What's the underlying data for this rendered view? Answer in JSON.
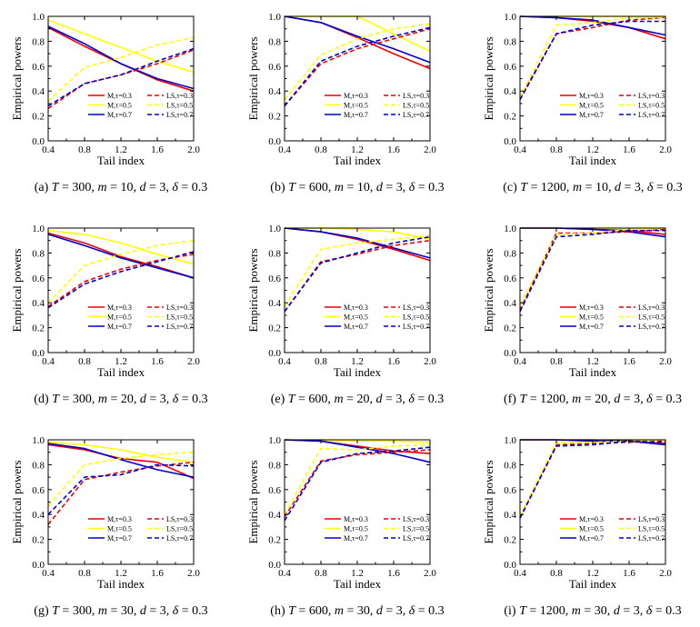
{
  "colors": {
    "red": "#ee0000",
    "yellow": "#ffff00",
    "blue": "#0000cc"
  },
  "legend": {
    "M": [
      "M,τ=0.3",
      "M,τ=0.5",
      "M,τ=0.7"
    ],
    "LS": [
      "LS,τ=0.3",
      "LS,τ=0.5",
      "LS,τ=0.7"
    ]
  },
  "chart_data": [
    {
      "type": "line",
      "panel": "a",
      "title_parts": [
        "(a) ",
        "T",
        " = 300, ",
        "m",
        " = 10, ",
        "d",
        " = 3, ",
        "δ",
        " = 0.3"
      ],
      "xlabel": "Tail index",
      "ylabel": "Empirical powers",
      "xlim": [
        0.4,
        2.0
      ],
      "ylim": [
        0.0,
        1.0
      ],
      "xticks": [
        "0.4",
        "0.8",
        "1.2",
        "1.6",
        "2.0"
      ],
      "yticks": [
        "0.0",
        "0.2",
        "0.4",
        "0.6",
        "0.8",
        "1.0"
      ],
      "x": [
        0.4,
        0.8,
        1.2,
        1.6,
        2.0
      ],
      "series": [
        {
          "name": "M,τ=0.3",
          "color": "red",
          "dash": false,
          "values": [
            0.91,
            0.76,
            0.62,
            0.49,
            0.4
          ]
        },
        {
          "name": "M,τ=0.5",
          "color": "yellow",
          "dash": false,
          "values": [
            0.97,
            0.86,
            0.75,
            0.64,
            0.55
          ]
        },
        {
          "name": "M,τ=0.7",
          "color": "blue",
          "dash": false,
          "values": [
            0.92,
            0.78,
            0.62,
            0.5,
            0.42
          ]
        },
        {
          "name": "LS,τ=0.3",
          "color": "red",
          "dash": true,
          "values": [
            0.26,
            0.46,
            0.53,
            0.62,
            0.73
          ]
        },
        {
          "name": "LS,τ=0.5",
          "color": "yellow",
          "dash": true,
          "values": [
            0.32,
            0.59,
            0.67,
            0.77,
            0.83
          ]
        },
        {
          "name": "LS,τ=0.7",
          "color": "blue",
          "dash": true,
          "values": [
            0.28,
            0.46,
            0.53,
            0.64,
            0.74
          ]
        }
      ]
    },
    {
      "type": "line",
      "panel": "b",
      "title_parts": [
        "(b) ",
        "T",
        " = 600, ",
        "m",
        " = 10, ",
        "d",
        " = 3, ",
        "δ",
        " = 0.3"
      ],
      "xlabel": "Tail index",
      "ylabel": "Empirical powers",
      "xlim": [
        0.4,
        2.0
      ],
      "ylim": [
        0.0,
        1.0
      ],
      "xticks": [
        "0.4",
        "0.8",
        "1.2",
        "1.6",
        "2.0"
      ],
      "yticks": [
        "0.0",
        "0.2",
        "0.4",
        "0.6",
        "0.8",
        "1.0"
      ],
      "x": [
        0.4,
        0.8,
        1.2,
        1.6,
        2.0
      ],
      "series": [
        {
          "name": "M,τ=0.3",
          "color": "red",
          "dash": false,
          "values": [
            1.0,
            0.95,
            0.83,
            0.7,
            0.58
          ]
        },
        {
          "name": "M,τ=0.5",
          "color": "yellow",
          "dash": false,
          "values": [
            1.0,
            1.0,
            1.0,
            0.86,
            0.72
          ]
        },
        {
          "name": "M,τ=0.7",
          "color": "blue",
          "dash": false,
          "values": [
            1.0,
            0.95,
            0.84,
            0.74,
            0.63
          ]
        },
        {
          "name": "LS,τ=0.3",
          "color": "red",
          "dash": true,
          "values": [
            0.28,
            0.62,
            0.74,
            0.82,
            0.9
          ]
        },
        {
          "name": "LS,τ=0.5",
          "color": "yellow",
          "dash": true,
          "values": [
            0.33,
            0.69,
            0.82,
            0.9,
            0.94
          ]
        },
        {
          "name": "LS,τ=0.7",
          "color": "blue",
          "dash": true,
          "values": [
            0.28,
            0.64,
            0.76,
            0.84,
            0.91
          ]
        }
      ]
    },
    {
      "type": "line",
      "panel": "c",
      "title_parts": [
        "(c) ",
        "T",
        " = 1200, ",
        "m",
        " = 10, ",
        "d",
        " = 3, ",
        "δ",
        " = 0.3"
      ],
      "xlabel": "Tail index",
      "ylabel": "Empirical powers",
      "xlim": [
        0.4,
        2.0
      ],
      "ylim": [
        0.0,
        1.0
      ],
      "xticks": [
        "0.4",
        "0.8",
        "1.2",
        "1.6",
        "2.0"
      ],
      "yticks": [
        "0.0",
        "0.2",
        "0.4",
        "0.6",
        "0.8",
        "1.0"
      ],
      "x": [
        0.4,
        0.8,
        1.2,
        1.6,
        2.0
      ],
      "series": [
        {
          "name": "M,τ=0.3",
          "color": "red",
          "dash": false,
          "values": [
            1.0,
            0.99,
            0.96,
            0.91,
            0.82
          ]
        },
        {
          "name": "M,τ=0.5",
          "color": "yellow",
          "dash": false,
          "values": [
            1.0,
            1.0,
            1.0,
            1.0,
            0.99
          ]
        },
        {
          "name": "M,τ=0.7",
          "color": "blue",
          "dash": false,
          "values": [
            1.0,
            0.99,
            0.97,
            0.91,
            0.85
          ]
        },
        {
          "name": "LS,τ=0.3",
          "color": "red",
          "dash": true,
          "values": [
            0.34,
            0.86,
            0.91,
            0.97,
            0.99
          ]
        },
        {
          "name": "LS,τ=0.5",
          "color": "yellow",
          "dash": true,
          "values": [
            0.35,
            0.93,
            0.95,
            0.99,
            0.99
          ]
        },
        {
          "name": "LS,τ=0.7",
          "color": "blue",
          "dash": true,
          "values": [
            0.33,
            0.86,
            0.93,
            0.96,
            0.96
          ]
        }
      ]
    },
    {
      "type": "line",
      "panel": "d",
      "title_parts": [
        "(d) ",
        "T",
        " = 300, ",
        "m",
        " = 20, ",
        "d",
        " = 3, ",
        "δ",
        " = 0.3"
      ],
      "xlabel": "Tail index",
      "ylabel": "Empirical powers",
      "xlim": [
        0.4,
        2.0
      ],
      "ylim": [
        0.0,
        1.0
      ],
      "xticks": [
        "0.4",
        "0.8",
        "1.2",
        "1.6",
        "2.0"
      ],
      "yticks": [
        "0.0",
        "0.2",
        "0.4",
        "0.6",
        "0.8",
        "1.0"
      ],
      "x": [
        0.4,
        0.8,
        1.2,
        1.6,
        2.0
      ],
      "series": [
        {
          "name": "M,τ=0.3",
          "color": "red",
          "dash": false,
          "values": [
            0.96,
            0.88,
            0.77,
            0.69,
            0.6
          ]
        },
        {
          "name": "M,τ=0.5",
          "color": "yellow",
          "dash": false,
          "values": [
            0.98,
            0.95,
            0.88,
            0.79,
            0.71
          ]
        },
        {
          "name": "M,τ=0.7",
          "color": "blue",
          "dash": false,
          "values": [
            0.95,
            0.86,
            0.76,
            0.68,
            0.6
          ]
        },
        {
          "name": "LS,τ=0.3",
          "color": "red",
          "dash": true,
          "values": [
            0.37,
            0.57,
            0.67,
            0.74,
            0.79
          ]
        },
        {
          "name": "LS,τ=0.5",
          "color": "yellow",
          "dash": true,
          "values": [
            0.4,
            0.7,
            0.79,
            0.86,
            0.9
          ]
        },
        {
          "name": "LS,τ=0.7",
          "color": "blue",
          "dash": true,
          "values": [
            0.36,
            0.55,
            0.65,
            0.73,
            0.81
          ]
        }
      ]
    },
    {
      "type": "line",
      "panel": "e",
      "title_parts": [
        "(e) ",
        "T",
        " = 600, ",
        "m",
        " = 20, ",
        "d",
        " = 3, ",
        "δ",
        " = 0.3"
      ],
      "xlabel": "Tail index",
      "ylabel": "Empirical powers",
      "xlim": [
        0.4,
        2.0
      ],
      "ylim": [
        0.0,
        1.0
      ],
      "xticks": [
        "0.4",
        "0.8",
        "1.2",
        "1.6",
        "2.0"
      ],
      "yticks": [
        "0.0",
        "0.2",
        "0.4",
        "0.6",
        "0.8",
        "1.0"
      ],
      "x": [
        0.4,
        0.8,
        1.2,
        1.6,
        2.0
      ],
      "series": [
        {
          "name": "M,τ=0.3",
          "color": "red",
          "dash": false,
          "values": [
            1.0,
            0.97,
            0.91,
            0.83,
            0.74
          ]
        },
        {
          "name": "M,τ=0.5",
          "color": "yellow",
          "dash": false,
          "values": [
            1.0,
            1.0,
            0.99,
            0.97,
            0.91
          ]
        },
        {
          "name": "M,τ=0.7",
          "color": "blue",
          "dash": false,
          "values": [
            1.0,
            0.97,
            0.92,
            0.84,
            0.76
          ]
        },
        {
          "name": "LS,τ=0.3",
          "color": "red",
          "dash": true,
          "values": [
            0.33,
            0.73,
            0.79,
            0.86,
            0.9
          ]
        },
        {
          "name": "LS,τ=0.5",
          "color": "yellow",
          "dash": true,
          "values": [
            0.37,
            0.83,
            0.88,
            0.91,
            0.94
          ]
        },
        {
          "name": "LS,τ=0.7",
          "color": "blue",
          "dash": true,
          "values": [
            0.33,
            0.72,
            0.8,
            0.88,
            0.93
          ]
        }
      ]
    },
    {
      "type": "line",
      "panel": "f",
      "title_parts": [
        "(f) ",
        "T",
        " = 1200, ",
        "m",
        " = 20, ",
        "d",
        " = 3, ",
        "δ",
        " = 0.3"
      ],
      "xlabel": "Tail index",
      "ylabel": "Empirical powers",
      "xlim": [
        0.4,
        2.0
      ],
      "ylim": [
        0.0,
        1.0
      ],
      "xticks": [
        "0.4",
        "0.8",
        "1.2",
        "1.6",
        "2.0"
      ],
      "yticks": [
        "0.0",
        "0.2",
        "0.4",
        "0.6",
        "0.8",
        "1.0"
      ],
      "x": [
        0.4,
        0.8,
        1.2,
        1.6,
        2.0
      ],
      "series": [
        {
          "name": "M,τ=0.3",
          "color": "red",
          "dash": false,
          "values": [
            1.0,
            1.0,
            0.99,
            0.98,
            0.95
          ]
        },
        {
          "name": "M,τ=0.5",
          "color": "yellow",
          "dash": false,
          "values": [
            1.0,
            1.0,
            1.0,
            1.0,
            1.0
          ]
        },
        {
          "name": "M,τ=0.7",
          "color": "blue",
          "dash": false,
          "values": [
            1.0,
            1.0,
            0.99,
            0.97,
            0.93
          ]
        },
        {
          "name": "LS,τ=0.3",
          "color": "red",
          "dash": true,
          "values": [
            0.34,
            0.96,
            0.96,
            0.97,
            0.99
          ]
        },
        {
          "name": "LS,τ=0.5",
          "color": "yellow",
          "dash": true,
          "values": [
            0.38,
            0.95,
            0.96,
            0.99,
            1.0
          ]
        },
        {
          "name": "LS,τ=0.7",
          "color": "blue",
          "dash": true,
          "values": [
            0.33,
            0.93,
            0.95,
            0.98,
            0.98
          ]
        }
      ]
    },
    {
      "type": "line",
      "panel": "g",
      "title_parts": [
        "(g) ",
        "T",
        " = 300, ",
        "m",
        " = 30, ",
        "d",
        " = 3, ",
        "δ",
        " = 0.3"
      ],
      "xlabel": "Tail index",
      "ylabel": "Empirical powers",
      "xlim": [
        0.4,
        2.0
      ],
      "ylim": [
        0.0,
        1.0
      ],
      "xticks": [
        "0.4",
        "0.8",
        "1.2",
        "1.6",
        "2.0"
      ],
      "yticks": [
        "0.0",
        "0.2",
        "0.4",
        "0.6",
        "0.8",
        "1.0"
      ],
      "x": [
        0.4,
        0.8,
        1.2,
        1.6,
        2.0
      ],
      "series": [
        {
          "name": "M,τ=0.3",
          "color": "red",
          "dash": false,
          "values": [
            0.96,
            0.92,
            0.85,
            0.82,
            0.69
          ]
        },
        {
          "name": "M,τ=0.5",
          "color": "yellow",
          "dash": false,
          "values": [
            0.98,
            0.96,
            0.92,
            0.86,
            0.82
          ]
        },
        {
          "name": "M,τ=0.7",
          "color": "blue",
          "dash": false,
          "values": [
            0.97,
            0.93,
            0.84,
            0.76,
            0.7
          ]
        },
        {
          "name": "LS,τ=0.3",
          "color": "red",
          "dash": true,
          "values": [
            0.32,
            0.68,
            0.74,
            0.79,
            0.82
          ]
        },
        {
          "name": "LS,τ=0.5",
          "color": "yellow",
          "dash": true,
          "values": [
            0.47,
            0.8,
            0.85,
            0.88,
            0.9
          ]
        },
        {
          "name": "LS,τ=0.7",
          "color": "blue",
          "dash": true,
          "values": [
            0.4,
            0.7,
            0.72,
            0.8,
            0.79
          ]
        }
      ]
    },
    {
      "type": "line",
      "panel": "h",
      "title_parts": [
        "(h) ",
        "T",
        " = 600, ",
        "m",
        " = 30, ",
        "d",
        " = 3, ",
        "δ",
        " = 0.3"
      ],
      "xlabel": "Tail index",
      "ylabel": "Empirical powers",
      "xlim": [
        0.4,
        2.0
      ],
      "ylim": [
        0.0,
        1.0
      ],
      "xticks": [
        "0.4",
        "0.8",
        "1.2",
        "1.6",
        "2.0"
      ],
      "yticks": [
        "0.0",
        "0.2",
        "0.4",
        "0.6",
        "0.8",
        "1.0"
      ],
      "x": [
        0.4,
        0.8,
        1.2,
        1.6,
        2.0
      ],
      "series": [
        {
          "name": "M,τ=0.3",
          "color": "red",
          "dash": false,
          "values": [
            1.0,
            0.99,
            0.95,
            0.91,
            0.89
          ]
        },
        {
          "name": "M,τ=0.5",
          "color": "yellow",
          "dash": false,
          "values": [
            1.0,
            1.0,
            0.99,
            0.99,
            0.98
          ]
        },
        {
          "name": "M,τ=0.7",
          "color": "blue",
          "dash": false,
          "values": [
            1.0,
            0.99,
            0.94,
            0.89,
            0.82
          ]
        },
        {
          "name": "LS,τ=0.3",
          "color": "red",
          "dash": true,
          "values": [
            0.38,
            0.83,
            0.88,
            0.9,
            0.92
          ]
        },
        {
          "name": "LS,τ=0.5",
          "color": "yellow",
          "dash": true,
          "values": [
            0.4,
            0.93,
            0.92,
            0.95,
            0.96
          ]
        },
        {
          "name": "LS,τ=0.7",
          "color": "blue",
          "dash": true,
          "values": [
            0.35,
            0.82,
            0.89,
            0.91,
            0.94
          ]
        }
      ]
    },
    {
      "type": "line",
      "panel": "i",
      "title_parts": [
        "(i) ",
        "T",
        " = 1200, ",
        "m",
        " = 30, ",
        "d",
        " = 3, ",
        "δ",
        " = 0.3"
      ],
      "xlabel": "Tail index",
      "ylabel": "Empirical powers",
      "xlim": [
        0.4,
        2.0
      ],
      "ylim": [
        0.0,
        1.0
      ],
      "xticks": [
        "0.4",
        "0.8",
        "1.2",
        "1.6",
        "2.0"
      ],
      "yticks": [
        "0.0",
        "0.2",
        "0.4",
        "0.6",
        "0.8",
        "1.0"
      ],
      "x": [
        0.4,
        0.8,
        1.2,
        1.6,
        2.0
      ],
      "series": [
        {
          "name": "M,τ=0.3",
          "color": "red",
          "dash": false,
          "values": [
            1.0,
            1.0,
            1.0,
            0.99,
            0.97
          ]
        },
        {
          "name": "M,τ=0.5",
          "color": "yellow",
          "dash": false,
          "values": [
            1.0,
            1.0,
            1.0,
            1.0,
            1.0
          ]
        },
        {
          "name": "M,τ=0.7",
          "color": "blue",
          "dash": false,
          "values": [
            1.0,
            1.0,
            0.99,
            0.99,
            0.96
          ]
        },
        {
          "name": "LS,τ=0.3",
          "color": "red",
          "dash": true,
          "values": [
            0.38,
            0.96,
            0.97,
            0.98,
            0.99
          ]
        },
        {
          "name": "LS,τ=0.5",
          "color": "yellow",
          "dash": true,
          "values": [
            0.39,
            0.98,
            0.98,
            0.99,
            1.0
          ]
        },
        {
          "name": "LS,τ=0.7",
          "color": "blue",
          "dash": true,
          "values": [
            0.37,
            0.95,
            0.96,
            0.99,
            0.98
          ]
        }
      ]
    }
  ]
}
